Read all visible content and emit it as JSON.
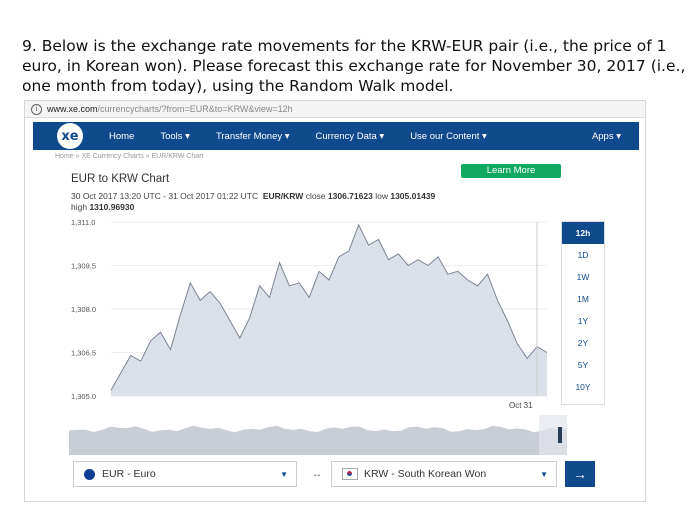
{
  "question": "9. Below is the exchange rate movements for the KRW-EUR pair (i.e., the price of 1 euro, in Korean won). Please forecast this exchange rate for November 30, 2017 (i.e., one month from today), using the Random Walk model.",
  "browser": {
    "url_domain": "www.xe.com",
    "url_rest": "/currencycharts/?from=EUR&to=KRW&view=12h"
  },
  "nav": {
    "logo": "xe",
    "items": [
      "Home",
      "Tools ▾",
      "Transfer Money ▾",
      "Currency Data ▾",
      "Use our Content ▾",
      "Apps ▾"
    ]
  },
  "breadcrumb": "Home » XE Currency Charts » EUR/KRW Chart",
  "learn_more": "Learn More",
  "chart_title": "EUR to KRW Chart",
  "meta": {
    "range": "30 Oct 2017 13:20 UTC - 31 Oct 2017 01:22 UTC",
    "pair_label": "EUR/KRW",
    "close_label": "close",
    "close_value": "1306.71623",
    "low_label": "low",
    "low_value": "1305.01439",
    "high_label": "high",
    "high_value": "1310.96930"
  },
  "ranges": [
    "12h",
    "1D",
    "1W",
    "1M",
    "1Y",
    "2Y",
    "5Y",
    "10Y"
  ],
  "active_range": "12h",
  "colors": {
    "nav": "#0f4a8c",
    "learn": "#11a860",
    "area": "#d8dde6",
    "line": "#7a8494"
  },
  "selectors": {
    "from": "EUR - Euro",
    "to": "KRW - South Korean Won",
    "swap": "↔",
    "go": "→"
  },
  "chart_data": {
    "type": "area",
    "y_ticks": [
      "1,311.0",
      "1,309.5",
      "1,308.0",
      "1,306.5",
      "1,305.0"
    ],
    "ylim": [
      1305.0,
      1311.0
    ],
    "x_label": "Oct 31",
    "series": [
      {
        "values": [
          1305.2,
          1305.8,
          1306.4,
          1306.2,
          1306.9,
          1307.2,
          1306.6,
          1307.8,
          1308.9,
          1308.3,
          1308.6,
          1308.2,
          1307.6,
          1307.0,
          1307.7,
          1308.8,
          1308.4,
          1309.6,
          1308.8,
          1308.9,
          1308.4,
          1309.3,
          1309.0,
          1309.8,
          1310.0,
          1310.9,
          1310.2,
          1310.4,
          1309.7,
          1309.9,
          1309.5,
          1309.7,
          1309.5,
          1309.8,
          1309.2,
          1309.3,
          1309.0,
          1308.8,
          1309.2,
          1308.3,
          1307.6,
          1306.8,
          1306.3,
          1306.7,
          1306.5
        ]
      }
    ]
  }
}
